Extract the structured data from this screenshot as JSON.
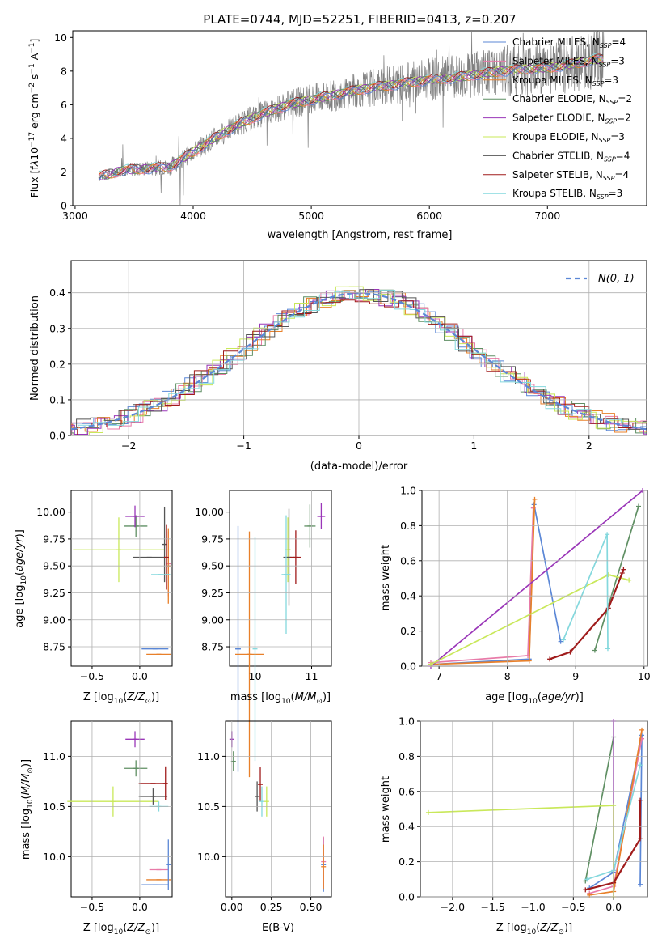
{
  "figure_title": "PLATE=0744, MJD=52251, FIBERID=0413, z=0.207",
  "colors": {
    "s1": "#5b87d6",
    "s2": "#e87aa8",
    "s3": "#e8802a",
    "s4": "#5f8f63",
    "s5": "#9a36b8",
    "s6": "#c9e85a",
    "s7": "#555555",
    "s8": "#a01c1c",
    "s9": "#84d8dd",
    "grid": "#b0b0b0",
    "data": "#808080"
  },
  "chart_data": [
    {
      "type": "line",
      "title": "PLATE=0744, MJD=52251, FIBERID=0413, z=0.207",
      "xlabel": "wavelength [Angstrom, rest frame]",
      "ylabel": "Flux [f_λ 10^-17 erg cm^-2 s^-1 A^-1]",
      "xlim": [
        2980,
        7840
      ],
      "ylim": [
        0,
        10.4
      ],
      "xticks": [
        "3000",
        "4000",
        "5000",
        "6000",
        "7000"
      ],
      "yticks": [
        "0",
        "2",
        "4",
        "6",
        "8",
        "10"
      ],
      "grid": false,
      "legend": "top-right",
      "legend_entries": [
        "Chabrier MILES, N_SSP=4",
        "Salpeter MILES, N_SSP=3",
        "Kroupa MILES, N_SSP=3",
        "Chabrier ELODIE, N_SSP=2",
        "Salpeter ELODIE, N_SSP=2",
        "Kroupa ELODIE, N_SSP=3",
        "Chabrier STELIB, N_SSP=4",
        "Salpeter STELIB, N_SSP=4",
        "Kroupa STELIB, N_SSP=3"
      ],
      "continuum": {
        "x": [
          3200,
          3400,
          3600,
          3800,
          4000,
          4200,
          4400,
          4600,
          4800,
          5000,
          5200,
          5400,
          5600,
          5800,
          6000,
          6200,
          6400,
          6600,
          6800,
          7000,
          7200,
          7400
        ],
        "y": [
          1.7,
          2.1,
          2.2,
          2.3,
          3.2,
          4.1,
          4.9,
          5.5,
          6.0,
          6.3,
          6.6,
          6.9,
          7.1,
          7.3,
          7.5,
          7.6,
          7.8,
          8.0,
          8.1,
          8.2,
          8.4,
          8.7
        ]
      }
    },
    {
      "type": "line",
      "xlabel": "(data-model)/error",
      "ylabel": "Normed distribution",
      "xlim": [
        -2.5,
        2.5
      ],
      "ylim": [
        0,
        0.49
      ],
      "xticks": [
        "−2",
        "−1",
        "0",
        "1",
        "2"
      ],
      "yticks": [
        "0.0",
        "0.1",
        "0.2",
        "0.3",
        "0.4"
      ],
      "grid": true,
      "legend": "top-right",
      "legend_entries": [
        "N(0,1)"
      ],
      "reference": "standard normal density"
    },
    {
      "type": "scatter",
      "xlabel": "Z [log10(Z/Z⊙)]",
      "ylabel": "age [log10(age/yr)]",
      "xlim": [
        -0.72,
        0.34
      ],
      "ylim": [
        8.57,
        10.2
      ],
      "xticks": [
        "−0.5",
        "0.0"
      ],
      "yticks": [
        "8.75",
        "9.00",
        "9.25",
        "9.50",
        "9.75",
        "10.00"
      ],
      "points": [
        {
          "s": 1,
          "x": 0.16,
          "y": 8.73,
          "xe": 0.14,
          "ye": 0.0
        },
        {
          "s": 3,
          "x": 0.2,
          "y": 8.68,
          "xe": 0.13,
          "ye": 0.0
        },
        {
          "s": 2,
          "x": 0.3,
          "y": 9.52,
          "xe": 0.01,
          "ye": 0.3
        },
        {
          "s": 3,
          "x": 0.3,
          "y": 9.5,
          "xe": 0.01,
          "ye": 0.35
        },
        {
          "s": 4,
          "x": -0.04,
          "y": 9.87,
          "xe": 0.12,
          "ye": 0.1
        },
        {
          "s": 5,
          "x": -0.05,
          "y": 9.96,
          "xe": 0.1,
          "ye": 0.1
        },
        {
          "s": 6,
          "x": -0.22,
          "y": 9.65,
          "xe": 0.48,
          "ye": 0.3
        },
        {
          "s": 7,
          "x": 0.1,
          "y": 9.58,
          "xe": 0.17,
          "ye": 0.0
        },
        {
          "s": 7,
          "x": 0.26,
          "y": 9.7,
          "xe": 0.01,
          "ye": 0.35
        },
        {
          "s": 8,
          "x": 0.28,
          "y": 9.58,
          "xe": 0.01,
          "ye": 0.3
        },
        {
          "s": 9,
          "x": 0.22,
          "y": 9.42,
          "xe": 0.1,
          "ye": 0.0
        }
      ]
    },
    {
      "type": "scatter",
      "xlabel": "mass [log10(M/M⊙)]",
      "ylabel": "",
      "xlim": [
        9.55,
        11.35
      ],
      "ylim": [
        8.57,
        10.2
      ],
      "xticks": [
        "10",
        "11"
      ],
      "yticks": [
        "8.75",
        "9.00",
        "9.25",
        "9.50",
        "9.75",
        "10.00"
      ],
      "points": [
        {
          "s": 1,
          "x": 9.7,
          "y": 8.73,
          "xe": 0.05,
          "ye": 1.14
        },
        {
          "s": 3,
          "x": 9.9,
          "y": 8.68,
          "xe": 0.25,
          "ye": 1.14
        },
        {
          "s": 9,
          "x": 10.0,
          "y": 8.73,
          "xe": 0.0,
          "ye": 1.04
        },
        {
          "s": 4,
          "x": 10.97,
          "y": 9.87,
          "xe": 0.1,
          "ye": 0.2
        },
        {
          "s": 5,
          "x": 11.17,
          "y": 9.96,
          "xe": 0.07,
          "ye": 0.12
        },
        {
          "s": 6,
          "x": 10.58,
          "y": 9.65,
          "xe": 0.05,
          "ye": 0.3
        },
        {
          "s": 7,
          "x": 10.6,
          "y": 9.58,
          "xe": 0.1,
          "ye": 0.45
        },
        {
          "s": 8,
          "x": 10.72,
          "y": 9.58,
          "xe": 0.1,
          "ye": 0.25
        },
        {
          "s": 9,
          "x": 10.55,
          "y": 9.42,
          "xe": 0.08,
          "ye": 0.55
        }
      ]
    },
    {
      "type": "line",
      "xlabel": "age [log10(age/yr)]",
      "ylabel": "mass weight",
      "xlim": [
        6.75,
        10.05
      ],
      "ylim": [
        0,
        1.0
      ],
      "xticks": [
        "7",
        "8",
        "9",
        "10"
      ],
      "yticks": [
        "0.0",
        "0.2",
        "0.4",
        "0.6",
        "0.8",
        "1.0"
      ],
      "grid": true,
      "series": [
        {
          "s": 1,
          "x": [
            6.88,
            8.32,
            8.39,
            8.78
          ],
          "y": [
            0.01,
            0.04,
            0.92,
            0.14
          ]
        },
        {
          "s": 2,
          "x": [
            6.88,
            8.3,
            8.38
          ],
          "y": [
            0.02,
            0.06,
            0.9
          ]
        },
        {
          "s": 3,
          "x": [
            6.88,
            8.32,
            8.4
          ],
          "y": [
            0.01,
            0.03,
            0.95
          ]
        },
        {
          "s": 4,
          "x": [
            9.28,
            9.92
          ],
          "y": [
            0.09,
            0.91
          ]
        },
        {
          "s": 5,
          "x": [
            6.88,
            9.98
          ],
          "y": [
            0.0,
            1.0
          ]
        },
        {
          "s": 6,
          "x": [
            6.88,
            9.48,
            9.78
          ],
          "y": [
            0.01,
            0.52,
            0.49
          ]
        },
        {
          "s": 8,
          "x": [
            8.62,
            8.92,
            9.48,
            9.68,
            9.7
          ],
          "y": [
            0.04,
            0.08,
            0.33,
            0.53,
            0.55
          ]
        },
        {
          "s": 9,
          "x": [
            8.82,
            9.46,
            9.47
          ],
          "y": [
            0.15,
            0.75,
            0.1
          ]
        }
      ]
    },
    {
      "type": "scatter",
      "xlabel": "Z [log10(Z/Z⊙)]",
      "ylabel": "mass [log10(M/M⊙)]",
      "xlim": [
        -0.72,
        0.34
      ],
      "ylim": [
        9.6,
        11.35
      ],
      "xticks": [
        "−0.5",
        "0.0"
      ],
      "yticks": [
        "10.0",
        "10.5",
        "11.0"
      ],
      "points": [
        {
          "s": 1,
          "x": 0.16,
          "y": 9.72,
          "xe": 0.14,
          "ye": 0.0
        },
        {
          "s": 3,
          "x": 0.2,
          "y": 9.77,
          "xe": 0.13,
          "ye": 0.0
        },
        {
          "s": 2,
          "x": 0.2,
          "y": 9.87,
          "xe": 0.1,
          "ye": 0.0
        },
        {
          "s": 1,
          "x": 0.3,
          "y": 9.92,
          "xe": 0.01,
          "ye": 0.25
        },
        {
          "s": 4,
          "x": -0.04,
          "y": 10.88,
          "xe": 0.12,
          "ye": 0.08
        },
        {
          "s": 5,
          "x": -0.05,
          "y": 11.17,
          "xe": 0.1,
          "ye": 0.08
        },
        {
          "s": 6,
          "x": -0.28,
          "y": 10.55,
          "xe": 0.48,
          "ye": 0.15
        },
        {
          "s": 7,
          "x": 0.14,
          "y": 10.6,
          "xe": 0.15,
          "ye": 0.08
        },
        {
          "s": 8,
          "x": 0.14,
          "y": 10.73,
          "xe": 0.15,
          "ye": 0.0
        },
        {
          "s": 8,
          "x": 0.27,
          "y": 10.73,
          "xe": 0.01,
          "ye": 0.17
        },
        {
          "s": 9,
          "x": 0.2,
          "y": 10.5,
          "xe": 0.1,
          "ye": 0.05
        }
      ]
    },
    {
      "type": "scatter",
      "xlabel": "E(B-V)",
      "ylabel": "",
      "xlim": [
        -0.04,
        0.63
      ],
      "ylim": [
        9.6,
        11.35
      ],
      "xticks": [
        "0.00",
        "0.25",
        "0.50"
      ],
      "yticks": [
        "10.0",
        "10.5",
        "11.0"
      ],
      "points": [
        {
          "s": 5,
          "x": 0.0,
          "y": 11.17,
          "xe": 0.0,
          "ye": 0.08
        },
        {
          "s": 4,
          "x": 0.01,
          "y": 10.95,
          "xe": 0.0,
          "ye": 0.1
        },
        {
          "s": 8,
          "x": 0.18,
          "y": 10.72,
          "xe": 0.0,
          "ye": 0.17
        },
        {
          "s": 7,
          "x": 0.16,
          "y": 10.6,
          "xe": 0.0,
          "ye": 0.15
        },
        {
          "s": 9,
          "x": 0.19,
          "y": 10.55,
          "xe": 0.0,
          "ye": 0.15
        },
        {
          "s": 6,
          "x": 0.22,
          "y": 10.55,
          "xe": 0.0,
          "ye": 0.15
        },
        {
          "s": 1,
          "x": 0.58,
          "y": 9.92,
          "xe": 0.0,
          "ye": 0.27
        },
        {
          "s": 2,
          "x": 0.58,
          "y": 9.95,
          "xe": 0.0,
          "ye": 0.25
        },
        {
          "s": 3,
          "x": 0.58,
          "y": 9.9,
          "xe": 0.0,
          "ye": 0.22
        }
      ]
    },
    {
      "type": "line",
      "xlabel": "Z [log10(Z/Z⊙)]",
      "ylabel": "mass weight",
      "xlim": [
        -2.4,
        0.42
      ],
      "ylim": [
        0,
        1.0
      ],
      "xticks": [
        "−2.0",
        "−1.5",
        "−1.0",
        "−0.5",
        "0.0"
      ],
      "yticks": [
        "0.0",
        "0.2",
        "0.4",
        "0.6",
        "0.8",
        "1.0"
      ],
      "grid": true,
      "series": [
        {
          "s": 1,
          "x": [
            -0.3,
            0.0,
            0.35,
            0.33
          ],
          "y": [
            0.05,
            0.14,
            0.92,
            0.07
          ]
        },
        {
          "s": 2,
          "x": [
            -0.3,
            0.0,
            0.35
          ],
          "y": [
            0.02,
            0.06,
            0.9
          ]
        },
        {
          "s": 3,
          "x": [
            -0.3,
            0.0,
            0.35
          ],
          "y": [
            0.01,
            0.03,
            0.95
          ]
        },
        {
          "s": 4,
          "x": [
            -0.35,
            0.0
          ],
          "y": [
            0.09,
            0.91
          ]
        },
        {
          "s": 5,
          "x": [
            0.0,
            0.0
          ],
          "y": [
            0.0,
            1.0
          ]
        },
        {
          "s": 6,
          "x": [
            -2.3,
            0.0,
            0.0
          ],
          "y": [
            0.48,
            0.52,
            0.0
          ]
        },
        {
          "s": 8,
          "x": [
            -0.35,
            0.0,
            0.33,
            0.33
          ],
          "y": [
            0.04,
            0.08,
            0.33,
            0.55
          ]
        },
        {
          "s": 9,
          "x": [
            -0.33,
            0.0,
            0.33
          ],
          "y": [
            0.1,
            0.15,
            0.75
          ]
        }
      ]
    }
  ]
}
